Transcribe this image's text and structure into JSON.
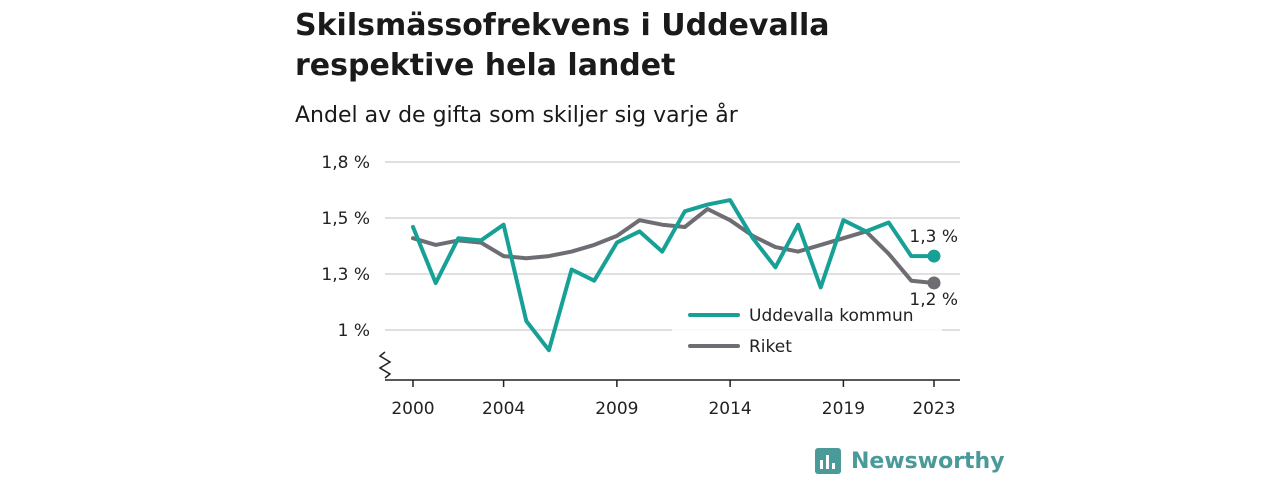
{
  "header": {
    "title": "Skilsmässofrekvens i Uddevalla respektive hela landet",
    "subtitle": "Andel av de gifta som skiljer sig varje år"
  },
  "brand": {
    "name": "Newsworthy",
    "color": "#4a9a9a",
    "icon": "bar-chart-logo-icon"
  },
  "chart_data": {
    "type": "line",
    "title": "Skilsmässofrekvens i Uddevalla respektive hela landet",
    "subtitle": "Andel av de gifta som skiljer sig varje år",
    "xlabel": "",
    "ylabel": "",
    "x": [
      2000,
      2001,
      2002,
      2003,
      2004,
      2005,
      2006,
      2007,
      2008,
      2009,
      2010,
      2011,
      2012,
      2013,
      2014,
      2015,
      2016,
      2017,
      2018,
      2019,
      2020,
      2021,
      2022,
      2023
    ],
    "x_ticks": [
      2000,
      2004,
      2009,
      2014,
      2019,
      2023
    ],
    "x_tick_labels": [
      "2000",
      "2004",
      "2009",
      "2014",
      "2019",
      "2023"
    ],
    "ylim": [
      0.85,
      1.8
    ],
    "y_ticks": [
      1.0,
      1.25,
      1.5,
      1.75
    ],
    "y_tick_labels": [
      "1 %",
      "1,3 %",
      "1,5 %",
      "1,8 %"
    ],
    "y_axis_break": true,
    "grid": "horizontal",
    "legend_position": "bottom-right",
    "series": [
      {
        "name": "Uddevalla kommun",
        "color": "#17a196",
        "values": [
          1.46,
          1.21,
          1.41,
          1.4,
          1.47,
          1.04,
          0.91,
          1.27,
          1.22,
          1.39,
          1.44,
          1.35,
          1.53,
          1.56,
          1.58,
          1.41,
          1.28,
          1.47,
          1.19,
          1.49,
          1.44,
          1.48,
          1.33,
          1.33
        ],
        "end_label": "1,3 %"
      },
      {
        "name": "Riket",
        "color": "#6e6d73",
        "values": [
          1.41,
          1.38,
          1.4,
          1.39,
          1.33,
          1.32,
          1.33,
          1.35,
          1.38,
          1.42,
          1.49,
          1.47,
          1.46,
          1.54,
          1.49,
          1.42,
          1.37,
          1.35,
          1.38,
          1.41,
          1.44,
          1.34,
          1.22,
          1.21
        ],
        "end_label": "1,2 %"
      }
    ]
  }
}
